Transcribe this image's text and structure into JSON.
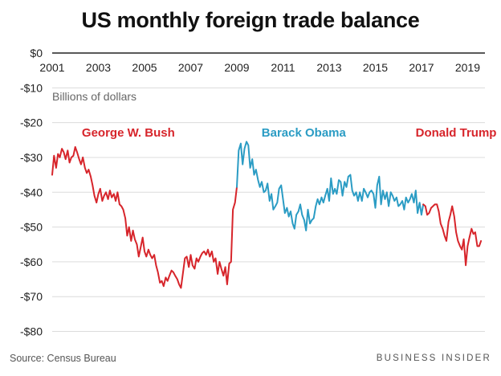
{
  "title": "US monthly foreign trade balance",
  "source": "Source: Census Bureau",
  "brand": "BUSINESS INSIDER",
  "colors": {
    "bush": "#d7252b",
    "obama": "#2b9cc4",
    "trump": "#d7252b",
    "grid": "#dcdcdc",
    "axis": "#222222"
  },
  "chart_data": {
    "type": "line",
    "title": "US monthly foreign trade balance",
    "ylabel": "Billions of dollars",
    "xlim": [
      2001,
      2019.75
    ],
    "ylim": [
      -85,
      0
    ],
    "grid": true,
    "x_ticks": [
      2001,
      2003,
      2005,
      2007,
      2009,
      2011,
      2013,
      2015,
      2017,
      2019
    ],
    "x_tick_labels": [
      "2001",
      "2003",
      "2005",
      "2007",
      "2009",
      "2011",
      "2013",
      "2015",
      "2017",
      "2019"
    ],
    "y_ticks": [
      0,
      -10,
      -20,
      -30,
      -40,
      -50,
      -60,
      -70,
      -80
    ],
    "y_tick_labels": [
      "$0",
      "-$10",
      "-$20",
      "-$30",
      "-$40",
      "-$50",
      "-$60",
      "-$70",
      "-$80"
    ],
    "annotations": [
      {
        "text": "George W. Bush",
        "x": 2004.3,
        "y": -24,
        "series": "bush"
      },
      {
        "text": "Barack Obama",
        "x": 2011.9,
        "y": -24,
        "series": "obama"
      },
      {
        "text": "Donald Trump",
        "x": 2018.5,
        "y": -24,
        "series": "trump"
      }
    ],
    "series": [
      {
        "key": "bush",
        "points": [
          [
            2001.0,
            -35.0
          ],
          [
            2001.08,
            -29.5
          ],
          [
            2001.17,
            -33.0
          ],
          [
            2001.25,
            -29.0
          ],
          [
            2001.33,
            -30.0
          ],
          [
            2001.42,
            -27.5
          ],
          [
            2001.5,
            -28.5
          ],
          [
            2001.58,
            -30.5
          ],
          [
            2001.67,
            -28.0
          ],
          [
            2001.75,
            -31.5
          ],
          [
            2001.83,
            -30.0
          ],
          [
            2001.92,
            -29.5
          ],
          [
            2002.0,
            -27.0
          ],
          [
            2002.08,
            -28.5
          ],
          [
            2002.17,
            -30.5
          ],
          [
            2002.25,
            -32.0
          ],
          [
            2002.33,
            -30.0
          ],
          [
            2002.42,
            -33.0
          ],
          [
            2002.5,
            -34.5
          ],
          [
            2002.58,
            -33.5
          ],
          [
            2002.67,
            -35.5
          ],
          [
            2002.75,
            -38.0
          ],
          [
            2002.83,
            -41.0
          ],
          [
            2002.92,
            -43.0
          ],
          [
            2003.0,
            -40.5
          ],
          [
            2003.08,
            -39.0
          ],
          [
            2003.17,
            -42.5
          ],
          [
            2003.25,
            -41.0
          ],
          [
            2003.33,
            -40.0
          ],
          [
            2003.42,
            -42.0
          ],
          [
            2003.5,
            -39.5
          ],
          [
            2003.58,
            -41.5
          ],
          [
            2003.67,
            -40.5
          ],
          [
            2003.75,
            -42.5
          ],
          [
            2003.83,
            -40.0
          ],
          [
            2003.92,
            -43.5
          ],
          [
            2004.0,
            -44.0
          ],
          [
            2004.08,
            -45.0
          ],
          [
            2004.17,
            -47.5
          ],
          [
            2004.25,
            -52.5
          ],
          [
            2004.33,
            -50.0
          ],
          [
            2004.42,
            -54.0
          ],
          [
            2004.5,
            -51.0
          ],
          [
            2004.58,
            -53.5
          ],
          [
            2004.67,
            -55.0
          ],
          [
            2004.75,
            -58.5
          ],
          [
            2004.83,
            -56.0
          ],
          [
            2004.92,
            -53.0
          ],
          [
            2005.0,
            -57.0
          ],
          [
            2005.08,
            -58.5
          ],
          [
            2005.17,
            -56.5
          ],
          [
            2005.25,
            -58.0
          ],
          [
            2005.33,
            -59.0
          ],
          [
            2005.42,
            -58.0
          ],
          [
            2005.5,
            -61.0
          ],
          [
            2005.58,
            -63.0
          ],
          [
            2005.67,
            -66.0
          ],
          [
            2005.75,
            -65.5
          ],
          [
            2005.83,
            -67.0
          ],
          [
            2005.92,
            -64.5
          ],
          [
            2006.0,
            -65.5
          ],
          [
            2006.08,
            -64.0
          ],
          [
            2006.17,
            -62.5
          ],
          [
            2006.25,
            -63.0
          ],
          [
            2006.33,
            -64.0
          ],
          [
            2006.42,
            -65.0
          ],
          [
            2006.5,
            -66.5
          ],
          [
            2006.58,
            -67.5
          ],
          [
            2006.67,
            -63.0
          ],
          [
            2006.75,
            -59.0
          ],
          [
            2006.83,
            -58.5
          ],
          [
            2006.92,
            -61.5
          ],
          [
            2007.0,
            -58.0
          ],
          [
            2007.08,
            -61.0
          ],
          [
            2007.17,
            -62.0
          ],
          [
            2007.25,
            -59.0
          ],
          [
            2007.33,
            -60.0
          ],
          [
            2007.42,
            -58.5
          ],
          [
            2007.5,
            -57.5
          ],
          [
            2007.58,
            -57.0
          ],
          [
            2007.67,
            -58.0
          ],
          [
            2007.75,
            -56.5
          ],
          [
            2007.83,
            -58.5
          ],
          [
            2007.92,
            -57.0
          ],
          [
            2008.0,
            -60.0
          ],
          [
            2008.08,
            -59.0
          ],
          [
            2008.17,
            -63.5
          ],
          [
            2008.25,
            -60.0
          ],
          [
            2008.33,
            -62.0
          ],
          [
            2008.42,
            -64.0
          ],
          [
            2008.5,
            -61.5
          ],
          [
            2008.58,
            -66.5
          ],
          [
            2008.67,
            -60.5
          ],
          [
            2008.75,
            -60.0
          ],
          [
            2008.83,
            -45.0
          ],
          [
            2008.92,
            -43.0
          ],
          [
            2009.0,
            -38.5
          ]
        ]
      },
      {
        "key": "obama",
        "points": [
          [
            2009.0,
            -38.5
          ],
          [
            2009.08,
            -28.0
          ],
          [
            2009.17,
            -26.0
          ],
          [
            2009.25,
            -32.0
          ],
          [
            2009.33,
            -27.5
          ],
          [
            2009.42,
            -25.5
          ],
          [
            2009.5,
            -26.5
          ],
          [
            2009.58,
            -33.0
          ],
          [
            2009.67,
            -30.5
          ],
          [
            2009.75,
            -35.0
          ],
          [
            2009.83,
            -33.5
          ],
          [
            2009.92,
            -36.5
          ],
          [
            2010.0,
            -38.5
          ],
          [
            2010.08,
            -37.0
          ],
          [
            2010.17,
            -40.0
          ],
          [
            2010.25,
            -39.5
          ],
          [
            2010.33,
            -37.5
          ],
          [
            2010.42,
            -42.5
          ],
          [
            2010.5,
            -40.5
          ],
          [
            2010.58,
            -45.0
          ],
          [
            2010.67,
            -44.0
          ],
          [
            2010.75,
            -43.0
          ],
          [
            2010.83,
            -39.0
          ],
          [
            2010.92,
            -38.0
          ],
          [
            2011.0,
            -42.0
          ],
          [
            2011.08,
            -46.0
          ],
          [
            2011.17,
            -44.5
          ],
          [
            2011.25,
            -47.0
          ],
          [
            2011.33,
            -45.5
          ],
          [
            2011.42,
            -49.0
          ],
          [
            2011.5,
            -50.5
          ],
          [
            2011.58,
            -46.5
          ],
          [
            2011.67,
            -45.5
          ],
          [
            2011.75,
            -43.5
          ],
          [
            2011.83,
            -46.5
          ],
          [
            2011.92,
            -48.0
          ],
          [
            2012.0,
            -51.0
          ],
          [
            2012.08,
            -45.0
          ],
          [
            2012.17,
            -49.0
          ],
          [
            2012.25,
            -48.0
          ],
          [
            2012.33,
            -47.5
          ],
          [
            2012.42,
            -44.0
          ],
          [
            2012.5,
            -42.0
          ],
          [
            2012.58,
            -43.5
          ],
          [
            2012.67,
            -41.5
          ],
          [
            2012.75,
            -43.0
          ],
          [
            2012.83,
            -41.0
          ],
          [
            2012.92,
            -39.0
          ],
          [
            2013.0,
            -42.5
          ],
          [
            2013.08,
            -36.0
          ],
          [
            2013.17,
            -40.5
          ],
          [
            2013.25,
            -39.0
          ],
          [
            2013.33,
            -40.5
          ],
          [
            2013.42,
            -36.5
          ],
          [
            2013.5,
            -37.0
          ],
          [
            2013.58,
            -41.0
          ],
          [
            2013.67,
            -37.0
          ],
          [
            2013.75,
            -38.5
          ],
          [
            2013.83,
            -35.5
          ],
          [
            2013.92,
            -35.0
          ],
          [
            2014.0,
            -39.5
          ],
          [
            2014.08,
            -41.0
          ],
          [
            2014.17,
            -40.0
          ],
          [
            2014.25,
            -42.5
          ],
          [
            2014.33,
            -40.0
          ],
          [
            2014.42,
            -42.5
          ],
          [
            2014.5,
            -39.0
          ],
          [
            2014.58,
            -40.0
          ],
          [
            2014.67,
            -41.5
          ],
          [
            2014.75,
            -40.0
          ],
          [
            2014.83,
            -39.5
          ],
          [
            2014.92,
            -40.5
          ],
          [
            2015.0,
            -44.5
          ],
          [
            2015.08,
            -38.0
          ],
          [
            2015.17,
            -35.5
          ],
          [
            2015.25,
            -43.5
          ],
          [
            2015.33,
            -39.5
          ],
          [
            2015.42,
            -42.0
          ],
          [
            2015.5,
            -40.0
          ],
          [
            2015.58,
            -44.0
          ],
          [
            2015.67,
            -40.0
          ],
          [
            2015.75,
            -41.0
          ],
          [
            2015.83,
            -42.5
          ],
          [
            2015.92,
            -41.5
          ],
          [
            2016.0,
            -44.0
          ],
          [
            2016.08,
            -43.5
          ],
          [
            2016.17,
            -42.5
          ],
          [
            2016.25,
            -45.0
          ],
          [
            2016.33,
            -41.5
          ],
          [
            2016.42,
            -43.0
          ],
          [
            2016.5,
            -42.0
          ],
          [
            2016.58,
            -40.5
          ],
          [
            2016.67,
            -43.0
          ],
          [
            2016.75,
            -39.5
          ],
          [
            2016.83,
            -46.0
          ],
          [
            2016.92,
            -43.0
          ],
          [
            2017.0,
            -46.5
          ],
          [
            2017.08,
            -43.5
          ]
        ]
      },
      {
        "key": "trump",
        "points": [
          [
            2017.08,
            -43.5
          ],
          [
            2017.17,
            -44.0
          ],
          [
            2017.25,
            -46.5
          ],
          [
            2017.33,
            -46.0
          ],
          [
            2017.42,
            -44.5
          ],
          [
            2017.5,
            -44.0
          ],
          [
            2017.58,
            -43.5
          ],
          [
            2017.67,
            -43.5
          ],
          [
            2017.75,
            -45.5
          ],
          [
            2017.83,
            -49.0
          ],
          [
            2017.92,
            -50.5
          ],
          [
            2018.0,
            -52.5
          ],
          [
            2018.08,
            -54.0
          ],
          [
            2018.17,
            -48.5
          ],
          [
            2018.25,
            -46.5
          ],
          [
            2018.33,
            -44.0
          ],
          [
            2018.42,
            -47.0
          ],
          [
            2018.5,
            -51.5
          ],
          [
            2018.58,
            -54.0
          ],
          [
            2018.67,
            -55.5
          ],
          [
            2018.75,
            -56.5
          ],
          [
            2018.83,
            -53.5
          ],
          [
            2018.92,
            -61.0
          ],
          [
            2019.0,
            -55.5
          ],
          [
            2019.08,
            -53.0
          ],
          [
            2019.17,
            -50.5
          ],
          [
            2019.25,
            -52.0
          ],
          [
            2019.33,
            -51.5
          ],
          [
            2019.42,
            -55.5
          ],
          [
            2019.5,
            -55.5
          ],
          [
            2019.58,
            -54.0
          ]
        ]
      }
    ]
  }
}
